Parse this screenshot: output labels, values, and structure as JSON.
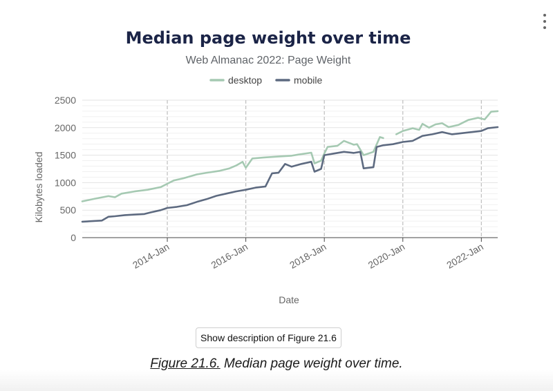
{
  "menu": {
    "icon": "more-vertical-icon"
  },
  "colors": {
    "desktop": "#a5c9b2",
    "mobile": "#5d6a80",
    "title": "#1b2447",
    "subtitle": "#5f6368",
    "axis_text": "#666666",
    "grid": "#e3e3e3",
    "year_line": "#bdbdbd"
  },
  "chart_data": {
    "type": "line",
    "title": "Median page weight over time",
    "subtitle": "Web Almanac 2022: Page Weight",
    "xlabel": "Date",
    "ylabel": "Kilobytes loaded",
    "xlim": [
      "2011-11",
      "2022-06"
    ],
    "ylim": [
      0,
      2500
    ],
    "y_ticks": [
      0,
      500,
      1000,
      1500,
      2000,
      2500
    ],
    "x_ticks": [
      "2014-Jan",
      "2016-Jan",
      "2018-Jan",
      "2020-Jan",
      "2022-Jan"
    ],
    "legend_position": "top-center",
    "series": [
      {
        "name": "desktop",
        "points": [
          [
            "2011-11",
            660
          ],
          [
            "2012-03",
            710
          ],
          [
            "2012-07",
            755
          ],
          [
            "2012-09",
            735
          ],
          [
            "2012-11",
            800
          ],
          [
            "2013-03",
            840
          ],
          [
            "2013-07",
            870
          ],
          [
            "2013-11",
            920
          ],
          [
            "2014-01",
            980
          ],
          [
            "2014-03",
            1040
          ],
          [
            "2014-06",
            1080
          ],
          [
            "2014-10",
            1150
          ],
          [
            "2015-01",
            1180
          ],
          [
            "2015-05",
            1215
          ],
          [
            "2015-08",
            1260
          ],
          [
            "2015-10",
            1310
          ],
          [
            "2015-12",
            1380
          ],
          [
            "2016-01",
            1270
          ],
          [
            "2016-03",
            1440
          ],
          [
            "2016-07",
            1460
          ],
          [
            "2016-11",
            1475
          ],
          [
            "2017-03",
            1490
          ],
          [
            "2017-05",
            1510
          ],
          [
            "2017-09",
            1545
          ],
          [
            "2017-10",
            1350
          ],
          [
            "2017-12",
            1400
          ],
          [
            "2018-01",
            1530
          ],
          [
            "2018-02",
            1650
          ],
          [
            "2018-05",
            1670
          ],
          [
            "2018-07",
            1760
          ],
          [
            "2018-10",
            1690
          ],
          [
            "2018-11",
            1700
          ],
          [
            "2019-01",
            1500
          ],
          [
            "2019-04",
            1560
          ],
          [
            "2019-06",
            1830
          ],
          [
            "2019-07",
            1810
          ],
          null,
          [
            "2019-11",
            1880
          ],
          [
            "2020-01",
            1940
          ],
          [
            "2020-04",
            1990
          ],
          [
            "2020-06",
            1960
          ],
          [
            "2020-07",
            2070
          ],
          [
            "2020-09",
            2000
          ],
          [
            "2020-11",
            2060
          ],
          [
            "2021-01",
            2080
          ],
          [
            "2021-03",
            2010
          ],
          [
            "2021-06",
            2050
          ],
          [
            "2021-09",
            2140
          ],
          [
            "2021-12",
            2180
          ],
          [
            "2022-02",
            2150
          ],
          [
            "2022-04",
            2290
          ],
          [
            "2022-06",
            2300
          ]
        ]
      },
      {
        "name": "mobile",
        "points": [
          [
            "2011-11",
            290
          ],
          [
            "2012-02",
            300
          ],
          [
            "2012-05",
            310
          ],
          [
            "2012-07",
            380
          ],
          [
            "2012-09",
            390
          ],
          [
            "2012-12",
            410
          ],
          [
            "2013-03",
            420
          ],
          [
            "2013-06",
            430
          ],
          [
            "2013-08",
            460
          ],
          [
            "2013-11",
            500
          ],
          [
            "2014-01",
            540
          ],
          [
            "2014-04",
            560
          ],
          [
            "2014-07",
            590
          ],
          [
            "2014-10",
            650
          ],
          [
            "2015-01",
            700
          ],
          [
            "2015-04",
            760
          ],
          [
            "2015-07",
            800
          ],
          [
            "2015-10",
            840
          ],
          [
            "2016-01",
            870
          ],
          [
            "2016-04",
            910
          ],
          [
            "2016-07",
            930
          ],
          [
            "2016-09",
            1170
          ],
          [
            "2016-11",
            1180
          ],
          [
            "2017-01",
            1340
          ],
          [
            "2017-03",
            1290
          ],
          [
            "2017-06",
            1340
          ],
          [
            "2017-09",
            1380
          ],
          [
            "2017-10",
            1200
          ],
          [
            "2017-12",
            1250
          ],
          [
            "2018-01",
            1500
          ],
          [
            "2018-04",
            1530
          ],
          [
            "2018-07",
            1560
          ],
          [
            "2018-10",
            1540
          ],
          [
            "2018-12",
            1560
          ],
          [
            "2019-01",
            1260
          ],
          [
            "2019-04",
            1280
          ],
          [
            "2019-05",
            1650
          ],
          [
            "2019-07",
            1680
          ],
          [
            "2019-10",
            1700
          ],
          [
            "2020-01",
            1740
          ],
          [
            "2020-04",
            1760
          ],
          [
            "2020-07",
            1850
          ],
          [
            "2020-10",
            1880
          ],
          [
            "2021-01",
            1920
          ],
          [
            "2021-04",
            1880
          ],
          [
            "2021-07",
            1900
          ],
          [
            "2021-10",
            1920
          ],
          [
            "2022-01",
            1940
          ],
          [
            "2022-03",
            1990
          ],
          [
            "2022-06",
            2010
          ]
        ]
      }
    ]
  },
  "description_button": {
    "label": "Show description of Figure 21.6"
  },
  "caption": {
    "figure_label": "Figure 21.6.",
    "text": " Median page weight over time."
  }
}
